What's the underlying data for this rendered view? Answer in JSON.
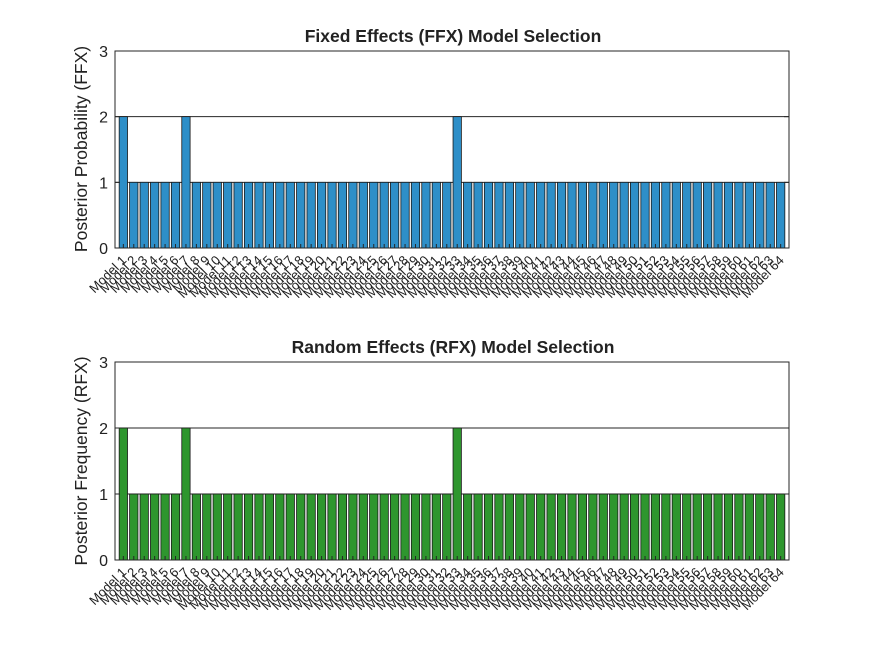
{
  "chart_data": [
    {
      "type": "bar",
      "title": "Fixed Effects (FFX) Model Selection",
      "xlabel": "",
      "ylabel": "Posterior Probability (FFX)",
      "ylim": [
        0,
        3
      ],
      "yticks": [
        0,
        1,
        2,
        3
      ],
      "grid": "y-major",
      "color": "#2e8fc8",
      "categories": [
        "Model 1",
        "Model 2",
        "Model 3",
        "Model 4",
        "Model 5",
        "Model 6",
        "Model 7",
        "Model 8",
        "Model 9",
        "Model 10",
        "Model 11",
        "Model 12",
        "Model 13",
        "Model 14",
        "Model 15",
        "Model 16",
        "Model 17",
        "Model 18",
        "Model 19",
        "Model 20",
        "Model 21",
        "Model 22",
        "Model 23",
        "Model 24",
        "Model 25",
        "Model 26",
        "Model 27",
        "Model 28",
        "Model 29",
        "Model 30",
        "Model 31",
        "Model 32",
        "Model 33",
        "Model 34",
        "Model 35",
        "Model 36",
        "Model 37",
        "Model 38",
        "Model 39",
        "Model 40",
        "Model 41",
        "Model 42",
        "Model 43",
        "Model 44",
        "Model 45",
        "Model 46",
        "Model 47",
        "Model 48",
        "Model 49",
        "Model 50",
        "Model 51",
        "Model 52",
        "Model 53",
        "Model 54",
        "Model 55",
        "Model 56",
        "Model 57",
        "Model 58",
        "Model 59",
        "Model 60",
        "Model 61",
        "Model 62",
        "Model 63",
        "Model 64"
      ],
      "values": [
        2,
        1,
        1,
        1,
        1,
        1,
        2,
        1,
        1,
        1,
        1,
        1,
        1,
        1,
        1,
        1,
        1,
        1,
        1,
        1,
        1,
        1,
        1,
        1,
        1,
        1,
        1,
        1,
        1,
        1,
        1,
        1,
        2,
        1,
        1,
        1,
        1,
        1,
        1,
        1,
        1,
        1,
        1,
        1,
        1,
        1,
        1,
        1,
        1,
        1,
        1,
        1,
        1,
        1,
        1,
        1,
        1,
        1,
        1,
        1,
        1,
        1,
        1,
        1
      ]
    },
    {
      "type": "bar",
      "title": "Random Effects (RFX) Model Selection",
      "xlabel": "",
      "ylabel": "Posterior Frequency (RFX)",
      "ylim": [
        0,
        3
      ],
      "yticks": [
        0,
        1,
        2,
        3
      ],
      "grid": "y-major",
      "color": "#2e962e",
      "categories": [
        "Model 1",
        "Model 2",
        "Model 3",
        "Model 4",
        "Model 5",
        "Model 6",
        "Model 7",
        "Model 8",
        "Model 9",
        "Model 10",
        "Model 11",
        "Model 12",
        "Model 13",
        "Model 14",
        "Model 15",
        "Model 16",
        "Model 17",
        "Model 18",
        "Model 19",
        "Model 20",
        "Model 21",
        "Model 22",
        "Model 23",
        "Model 24",
        "Model 25",
        "Model 26",
        "Model 27",
        "Model 28",
        "Model 29",
        "Model 30",
        "Model 31",
        "Model 32",
        "Model 33",
        "Model 34",
        "Model 35",
        "Model 36",
        "Model 37",
        "Model 38",
        "Model 39",
        "Model 40",
        "Model 41",
        "Model 42",
        "Model 43",
        "Model 44",
        "Model 45",
        "Model 46",
        "Model 47",
        "Model 48",
        "Model 49",
        "Model 50",
        "Model 51",
        "Model 52",
        "Model 53",
        "Model 54",
        "Model 55",
        "Model 56",
        "Model 57",
        "Model 58",
        "Model 59",
        "Model 60",
        "Model 61",
        "Model 62",
        "Model 63",
        "Model 64"
      ],
      "values": [
        2,
        1,
        1,
        1,
        1,
        1,
        2,
        1,
        1,
        1,
        1,
        1,
        1,
        1,
        1,
        1,
        1,
        1,
        1,
        1,
        1,
        1,
        1,
        1,
        1,
        1,
        1,
        1,
        1,
        1,
        1,
        1,
        2,
        1,
        1,
        1,
        1,
        1,
        1,
        1,
        1,
        1,
        1,
        1,
        1,
        1,
        1,
        1,
        1,
        1,
        1,
        1,
        1,
        1,
        1,
        1,
        1,
        1,
        1,
        1,
        1,
        1,
        1,
        1
      ]
    }
  ]
}
